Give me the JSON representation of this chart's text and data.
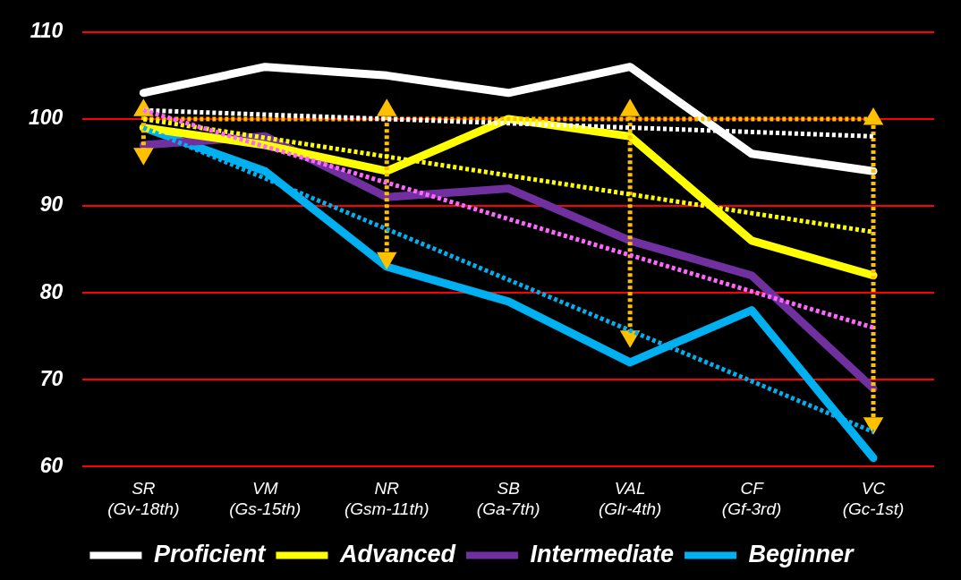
{
  "chart_data": {
    "type": "line",
    "categories": [
      "SR (Gv-18th)",
      "VM (Gs-15th)",
      "NR (Gsm-11th)",
      "SB (Ga-7th)",
      "VAL (Glr-4th)",
      "CF (Gf-3rd)",
      "VC (Gc-1st)"
    ],
    "series": [
      {
        "name": "Proficient",
        "color": "#ffffff",
        "values": [
          103,
          106,
          105,
          103,
          106,
          96,
          94
        ]
      },
      {
        "name": "Advanced",
        "color": "#ffff00",
        "values": [
          99,
          97,
          94,
          100,
          98,
          86,
          82
        ]
      },
      {
        "name": "Intermediate",
        "color": "#7030a0",
        "values": [
          97,
          98,
          91,
          92,
          86,
          82,
          69
        ]
      },
      {
        "name": "Beginner",
        "color": "#00b0f0",
        "values": [
          99,
          94,
          83,
          79,
          72,
          78,
          61
        ]
      },
      {
        "type": "line",
        "color": "#ffffff",
        "line_style": "dotted",
        "x": [
          "SR (Gv-18th)",
          "VC (Gc-1st)"
        ],
        "values": [
          101,
          98
        ]
      },
      {
        "type": "line",
        "color": "#ffff00",
        "line_style": "dotted",
        "x": [
          "SR (Gv-18th)",
          "VC (Gc-1st)"
        ],
        "values": [
          100,
          87
        ]
      },
      {
        "type": "line",
        "color": "#ff66ff",
        "line_style": "dotted",
        "x": [
          "SR (Gv-18th)",
          "VC (Gc-1st)"
        ],
        "values": [
          101,
          76
        ]
      },
      {
        "type": "line",
        "color": "#00b0f0",
        "line_style": "dotted",
        "x": [
          "SR (Gv-18th)",
          "VC (Gc-1st)"
        ],
        "values": [
          99,
          64
        ]
      },
      {
        "type": "line",
        "color": "#ffc000",
        "line_style": "dotted",
        "x": [
          "SR (Gv-18th)",
          "VC (Gc-1st)"
        ],
        "values": [
          100,
          100
        ]
      },
      {
        "type": "line",
        "color": "#ffc000",
        "line_style": "dotted",
        "marker": "triangle",
        "x": [
          "SR (Gv-18th)",
          "SR (Gv-18th)"
        ],
        "values": [
          101,
          96
        ]
      },
      {
        "type": "line",
        "color": "#ffc000",
        "line_style": "dotted",
        "marker": "triangle",
        "x": [
          "NR (Gsm-11th)",
          "NR (Gsm-11th)"
        ],
        "values": [
          101,
          84
        ]
      },
      {
        "type": "line",
        "color": "#ffc000",
        "line_style": "dotted",
        "marker": "triangle",
        "x": [
          "VAL (Glr-4th)",
          "VAL (Glr-4th)"
        ],
        "values": [
          101,
          75
        ]
      },
      {
        "type": "line",
        "color": "#ffc000",
        "line_style": "dotted",
        "marker": "triangle",
        "x": [
          "VC (Gc-1st)",
          "VC (Gc-1st)"
        ],
        "values": [
          100,
          65
        ]
      }
    ],
    "ylim": [
      60,
      110
    ],
    "yticks": [
      60,
      70,
      80,
      90,
      100,
      110
    ],
    "grid": "y",
    "legend": "bottom",
    "marker": "none",
    "line_style": "solid"
  }
}
